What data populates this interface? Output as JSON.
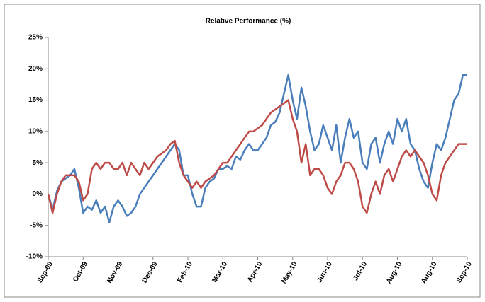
{
  "chart_data": {
    "type": "line",
    "title": "Relative Performance (%)",
    "categories": [
      "Sep-09",
      null,
      null,
      null,
      null,
      null,
      null,
      null,
      "Oct-09",
      null,
      null,
      null,
      null,
      null,
      null,
      null,
      "Nov-09",
      null,
      null,
      null,
      null,
      null,
      null,
      null,
      "Dec-09",
      null,
      null,
      null,
      null,
      null,
      null,
      null,
      "Feb-10",
      null,
      null,
      null,
      null,
      null,
      null,
      null,
      "Mar-10",
      null,
      null,
      null,
      null,
      null,
      null,
      null,
      "Apr-10",
      null,
      null,
      null,
      null,
      null,
      null,
      null,
      "May-10",
      null,
      null,
      null,
      null,
      null,
      null,
      null,
      "Jun-10",
      null,
      null,
      null,
      null,
      null,
      null,
      null,
      "Jul-10",
      null,
      null,
      null,
      null,
      null,
      null,
      null,
      "Aug-10",
      null,
      null,
      null,
      null,
      null,
      null,
      null,
      "Aug-10",
      null,
      null,
      null,
      null,
      null,
      null,
      null,
      "Sep-10"
    ],
    "series": [
      {
        "color": "#4a7ebb",
        "values": [
          0,
          -2.5,
          0.5,
          2,
          2.5,
          3,
          4,
          1,
          -3,
          -2,
          -2.5,
          -1,
          -3,
          -2,
          -4.5,
          -2,
          -1,
          -2,
          -3.5,
          -3,
          -2,
          0,
          1,
          2,
          3,
          4,
          5,
          6,
          7,
          8,
          7,
          3,
          3,
          0,
          -2,
          -2,
          1,
          2,
          2.5,
          4,
          4,
          4.5,
          4,
          6,
          5.5,
          7,
          8,
          7,
          7,
          8,
          9,
          11,
          11.5,
          13,
          16,
          19,
          15,
          12,
          17,
          14,
          10,
          7,
          8,
          11,
          9,
          7,
          11,
          5,
          9,
          12,
          9,
          10,
          5,
          4,
          8,
          9,
          5,
          8,
          10,
          8,
          12,
          10,
          12,
          8,
          7,
          4,
          2,
          1,
          5,
          8,
          7,
          9,
          12,
          15,
          16,
          19,
          19
        ]
      },
      {
        "color": "#be4b48",
        "values": [
          0,
          -3,
          0,
          2,
          3,
          3,
          3,
          2,
          -1,
          0,
          4,
          5,
          4,
          5,
          5,
          4,
          4,
          5,
          3,
          5,
          4,
          3,
          5,
          4,
          5,
          6,
          6.5,
          7,
          8,
          8.5,
          5,
          3,
          2,
          1,
          2,
          1,
          2,
          2.5,
          3,
          4,
          5,
          5,
          6,
          7,
          8,
          9,
          10,
          10,
          10.5,
          11,
          12,
          13,
          13.5,
          14,
          14.5,
          15,
          12,
          10,
          5,
          8,
          3,
          4,
          4,
          3,
          1,
          0,
          2,
          3,
          5,
          5,
          4,
          2,
          -2,
          -3,
          0,
          2,
          0,
          3,
          4,
          2,
          4,
          6,
          7,
          6,
          7,
          6,
          5,
          3,
          0,
          -1,
          3,
          5,
          6,
          7,
          8,
          8,
          8
        ]
      }
    ],
    "ylim": [
      -10,
      25
    ],
    "yticks": [
      {
        "value": -10,
        "label": "-10%"
      },
      {
        "value": -5,
        "label": "-5%"
      },
      {
        "value": 0,
        "label": "0%"
      },
      {
        "value": 5,
        "label": "5%"
      },
      {
        "value": 10,
        "label": "10%"
      },
      {
        "value": 15,
        "label": "15%"
      },
      {
        "value": 20,
        "label": "20%"
      },
      {
        "value": 25,
        "label": "25%"
      }
    ],
    "grid": false
  }
}
